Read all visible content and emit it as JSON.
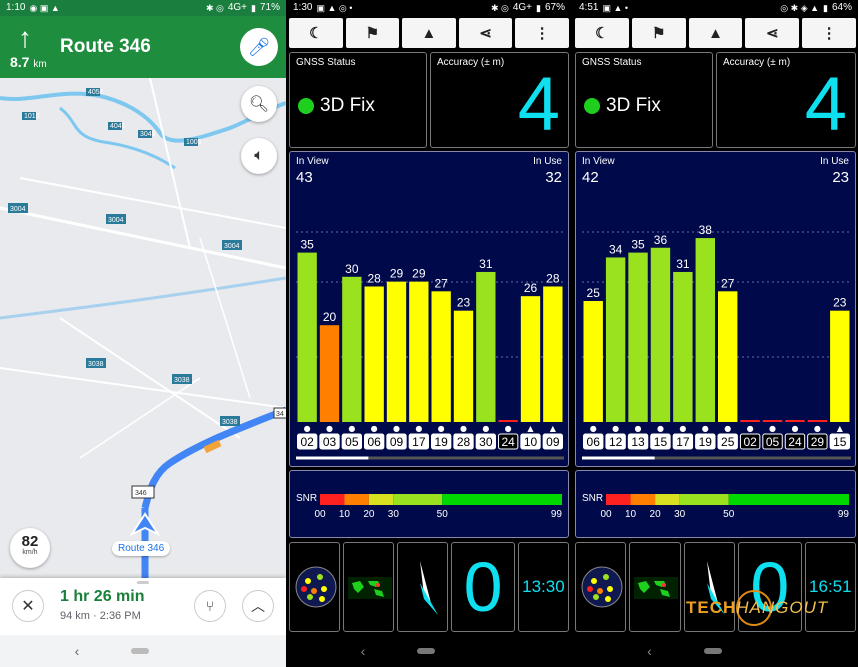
{
  "maps": {
    "status": {
      "time": "1:10",
      "battery": "71%",
      "network": "4G+"
    },
    "maneuver": {
      "arrow": "↑",
      "distance": "8.7",
      "unit": "km",
      "street": "Route 346"
    },
    "road_labels": [
      "4051",
      "1010",
      "4041",
      "3049",
      "1005",
      "3004",
      "3004",
      "3004",
      "3038",
      "3038",
      "3038",
      "346",
      "34"
    ],
    "speed": {
      "value": "82",
      "unit": "km/h"
    },
    "route_label": "Route 346",
    "eta": {
      "duration": "1 hr 26 min",
      "distance": "94 km",
      "arrival": "2:36 PM",
      "separator": "·"
    }
  },
  "gps1": {
    "status": {
      "time": "1:30",
      "battery": "67%",
      "network": "4G+"
    },
    "gnss_label": "GNSS Status",
    "fix": "3D Fix",
    "accuracy_label": "Accuracy (± m)",
    "accuracy": "4",
    "in_view_label": "In View",
    "in_use_label": "In Use",
    "in_view": "43",
    "in_use": "32",
    "snr_label": "SNR",
    "speed": "0",
    "clock": "13:30"
  },
  "gps2": {
    "status": {
      "time": "4:51",
      "battery": "64%"
    },
    "gnss_label": "GNSS Status",
    "fix": "3D Fix",
    "accuracy_label": "Accuracy (± m)",
    "accuracy": "4",
    "in_view_label": "In View",
    "in_use_label": "In Use",
    "in_view": "42",
    "in_use": "23",
    "snr_label": "SNR",
    "speed": "0",
    "clock": "16:51"
  },
  "snr_scale": [
    "00",
    "10",
    "20",
    "30",
    "50",
    "99"
  ],
  "watermark": {
    "a": "TECH",
    "b": "HANGOUT"
  },
  "colors": {
    "green": "#1e8e3e",
    "cyan": "#0ee0f0",
    "sky": "#000a4a",
    "snr_green": "#9ae21e",
    "snr_yellow": "#ffff00",
    "snr_orange": "#ff7f00"
  },
  "chart_data": [
    {
      "type": "bar",
      "categories": [
        "02",
        "03",
        "05",
        "06",
        "09",
        "17",
        "19",
        "28",
        "30",
        "24",
        "10",
        "09"
      ],
      "series": [
        {
          "values": [
            35,
            20,
            30,
            28,
            29,
            29,
            27,
            23,
            31,
            0,
            26,
            28
          ]
        }
      ],
      "markers": [
        "●",
        "●",
        "●",
        "●",
        "●",
        "●",
        "●",
        "●",
        "●",
        "●",
        "▲",
        "▲"
      ],
      "in_use": [
        true,
        true,
        true,
        true,
        true,
        true,
        true,
        true,
        true,
        false,
        true,
        true
      ],
      "ylim": [
        0,
        50
      ]
    },
    {
      "type": "bar",
      "categories": [
        "06",
        "12",
        "13",
        "15",
        "17",
        "19",
        "25",
        "02",
        "05",
        "24",
        "29",
        "15"
      ],
      "series": [
        {
          "values": [
            25,
            34,
            35,
            36,
            31,
            38,
            27,
            0,
            0,
            0,
            0,
            23
          ]
        }
      ],
      "markers": [
        "●",
        "●",
        "●",
        "●",
        "●",
        "●",
        "●",
        "●",
        "●",
        "●",
        "●",
        "▲"
      ],
      "in_use": [
        true,
        true,
        true,
        true,
        true,
        true,
        true,
        false,
        false,
        false,
        false,
        true
      ],
      "ylim": [
        0,
        50
      ]
    }
  ]
}
